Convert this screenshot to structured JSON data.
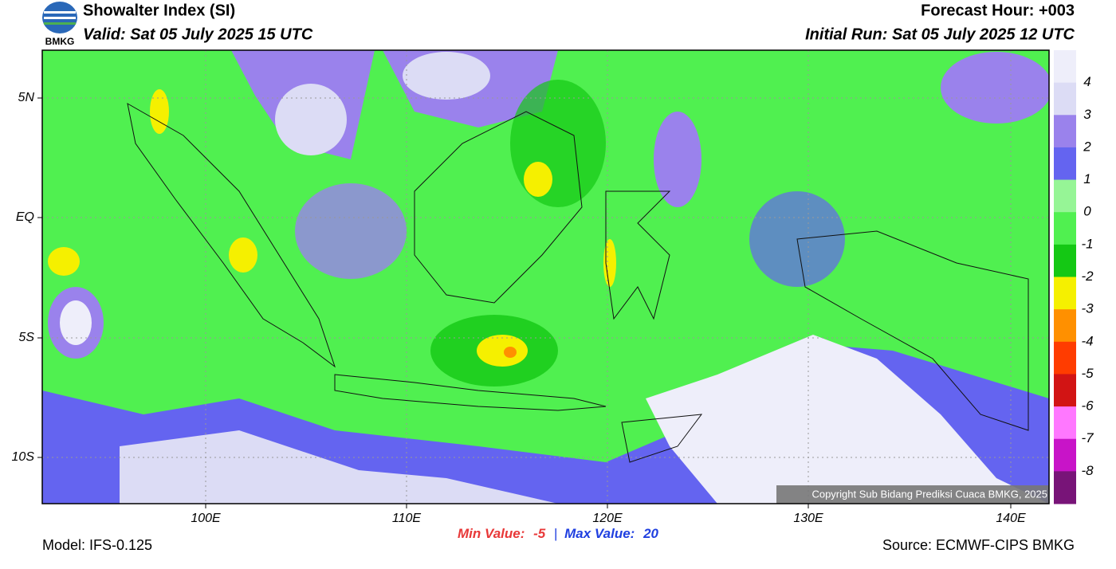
{
  "header": {
    "logo": "BMKG",
    "title": "Showalter Index (SI)",
    "valid": "Valid: Sat 05 July 2025 15 UTC",
    "forecast_hour": "Forecast Hour: +003",
    "initial_run": "Initial Run: Sat 05 July 2025 12 UTC"
  },
  "map": {
    "lat_labels": [
      "5N",
      "EQ",
      "5S",
      "10S"
    ],
    "lon_labels": [
      "100E",
      "110E",
      "120E",
      "130E",
      "140E"
    ],
    "copyright": "Copyright Sub Bidang Prediksi Cuaca BMKG, 2025"
  },
  "colorbar": {
    "colors": [
      "#eeeefa",
      "#dcdcf5",
      "#9a82ec",
      "#6464f0",
      "#96f596",
      "#50f050",
      "#14c814",
      "#f5f000",
      "#ff9000",
      "#ff3c00",
      "#d21414",
      "#ff78ff",
      "#c814c8",
      "#781478"
    ],
    "labels": [
      "4",
      "3",
      "2",
      "1",
      "0",
      "-1",
      "-2",
      "-3",
      "-4",
      "-5",
      "-6",
      "-7",
      "-8"
    ]
  },
  "footer": {
    "model": "Model: IFS-0.125",
    "min_label": "Min Value:",
    "min_value": -5,
    "separator": "|",
    "max_label": "Max Value:",
    "max_value": 20,
    "source": "Source: ECMWF-CIPS BMKG"
  }
}
